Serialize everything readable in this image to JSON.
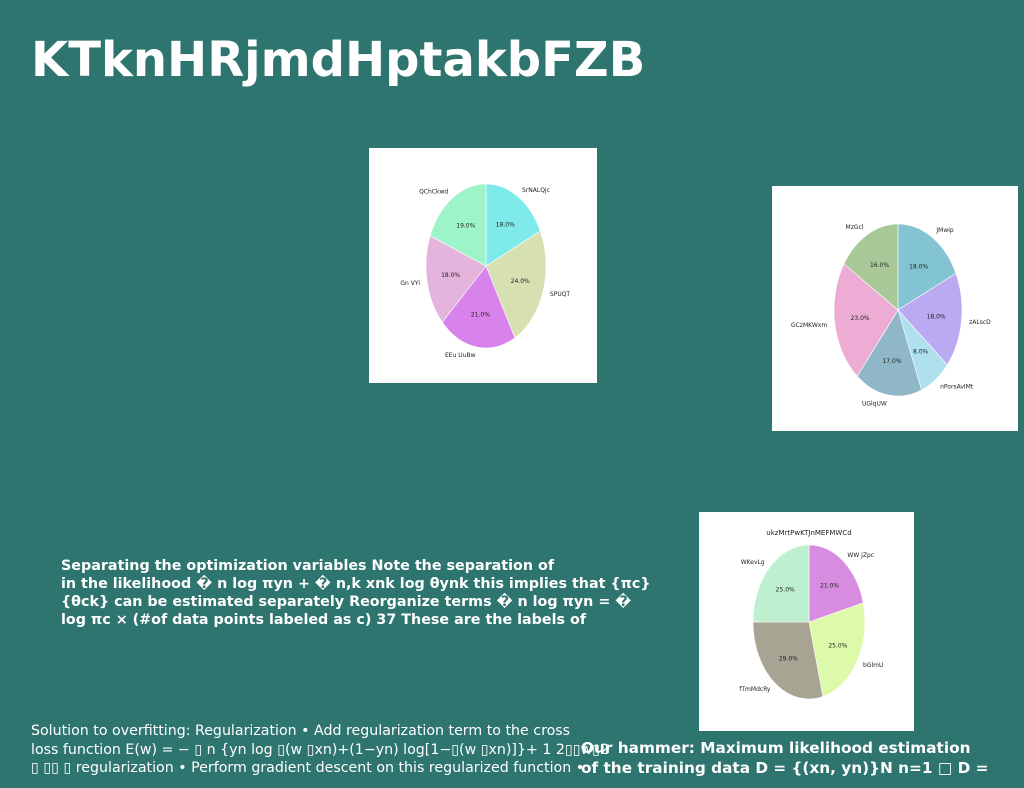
{
  "slide": {
    "title": "KTknHRjmdHptakbFZB",
    "bold_paragraph": [
      "Separating the optimization variables Note the separation of",
      "in the likelihood � n log πyn + � n,k xnk log θynk this implies that {πc}",
      "{θck} can be estimated separately Reorganize terms � n log πyn = �",
      "log πc × (#of data points labeled as c) 37 These are the labels of"
    ],
    "bottom_left_text": [
      "Solution to overfitting: Regularization • Add regularization term to the cross",
      "loss function E(w) = − ▯ n {yn log ▯(w ▯xn)+(1−yn) log[1−▯(w ▯xn)]}+ 1 2▯▯w▯2",
      "▯ ▯▯ ▯ regularization • Perform gradient descent on this regularized function •"
    ],
    "bottom_right_text": [
      "Our hammer: Maximum likelihood estimation",
      "of the training data D = {(xn, yn)}N n=1 □ D ="
    ]
  },
  "chart_data": [
    {
      "type": "pie",
      "title": "",
      "labels": [
        "SrNALQjc",
        "SPUQT",
        "EEu UuBw",
        "Gn VYi",
        "QChCkwd"
      ],
      "values": [
        18.0,
        24.0,
        21.0,
        18.0,
        19.0
      ],
      "value_labels": [
        "18.0%",
        "24.0%",
        "21.0%",
        "18.0%",
        "19.0%"
      ],
      "colors": [
        "#7eeaea",
        "#d6e0b0",
        "#d883ec",
        "#e4b4dc",
        "#9cf4c8"
      ]
    },
    {
      "type": "pie",
      "title": "",
      "labels": [
        "JMwip",
        "zALscD",
        "nPorsAvIMt",
        "UGlqUW",
        "GCzMKWxm",
        "MzGcl"
      ],
      "values": [
        18.0,
        18.0,
        8.0,
        17.0,
        23.0,
        16.0
      ],
      "value_labels": [
        "18.0%",
        "18.0%",
        "8.0%",
        "17.0%",
        "23.0%",
        "16.0%"
      ],
      "colors": [
        "#82c4d2",
        "#b9aaf2",
        "#aee0ee",
        "#8fb7c8",
        "#ecacd4",
        "#a8c898"
      ]
    },
    {
      "type": "pie",
      "title": "ukzMrtPwKTJnMEFMWCd",
      "labels": [
        "WW jZpc",
        "bGlmU",
        "fTmMdcRy",
        "WKevLg"
      ],
      "values": [
        21.0,
        25.0,
        29.0,
        25.0
      ],
      "value_labels": [
        "21.0%",
        "25.0%",
        "29.0%",
        "25.0%"
      ],
      "colors": [
        "#d88ce0",
        "#dcfaaa",
        "#a8a494",
        "#bef0d0"
      ]
    }
  ]
}
